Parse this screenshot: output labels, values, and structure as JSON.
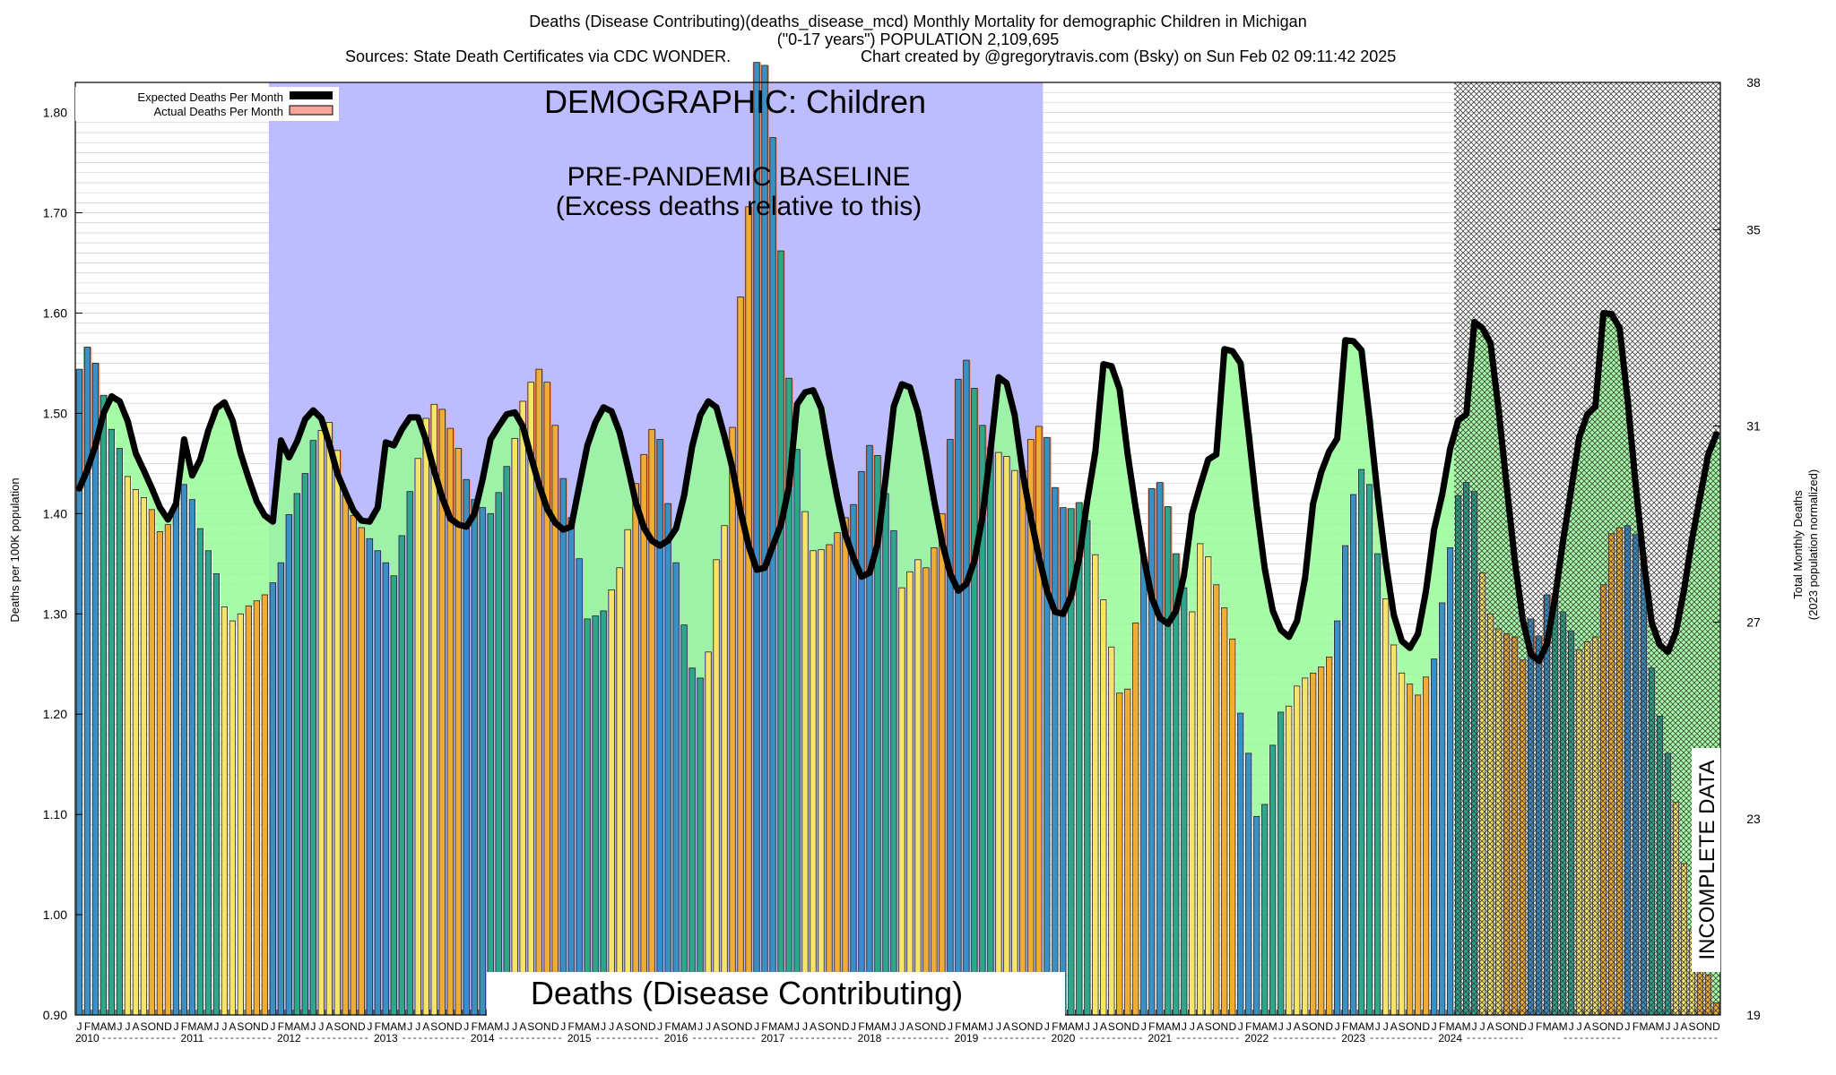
{
  "header": {
    "title_line1": "Deaths (Disease Contributing)(deaths_disease_mcd) Monthly Mortality for demographic Children in Michigan",
    "title_line2": "(\"0-17 years\") POPULATION 2,109,695",
    "sources": "Sources: State Death Certificates via CDC WONDER.",
    "credit": "Chart created by @gregorytravis.com (Bsky) on Sun Feb 02 09:11:42 2025"
  },
  "legend": {
    "expected": "Expected Deaths Per Month",
    "actual": "Actual Deaths Per Month"
  },
  "annotations": {
    "demographic": "DEMOGRAPHIC: Children",
    "baseline_line1": "PRE-PANDEMIC BASELINE",
    "baseline_line2": "(Excess deaths relative to this)",
    "incomplete": "INCOMPLETE DATA",
    "bottom_label": "Deaths (Disease Contributing)"
  },
  "colors": {
    "winter": "#3a8fc4",
    "spring": "#2fa58a",
    "summer": "#f4e46a",
    "autumn": "#f0ad35",
    "excess_fill": "#ff8c69",
    "deficit_fill": "#98fb98",
    "baseline_band": "#bcbcff",
    "expected_line": "#000000"
  },
  "chart_data": {
    "type": "bar",
    "title": "Deaths (Disease Contributing)(deaths_disease_mcd) Monthly Mortality for demographic Children in Michigan",
    "ylabel": "Deaths per 100K population",
    "ylabel_right_line1": "Total Monthly Deaths",
    "ylabel_right_line2": "(2023 population normalized)",
    "ylim": [
      0.9,
      1.83
    ],
    "yticks": [
      "0.90",
      "1.00",
      "1.10",
      "1.20",
      "1.30",
      "1.40",
      "1.50",
      "1.60",
      "1.70",
      "1.80"
    ],
    "yticks_right": [
      "19",
      "23",
      "27",
      "31",
      "35",
      "38"
    ],
    "month_letters": [
      "J",
      "F",
      "M",
      "A",
      "M",
      "J",
      "J",
      "A",
      "S",
      "O",
      "N",
      "D"
    ],
    "years": [
      "2010",
      "2011",
      "2012",
      "2013",
      "2014",
      "2015",
      "2016",
      "2017",
      "2018",
      "2019",
      "2020",
      "2021",
      "2022",
      "2023",
      "2024"
    ],
    "baseline_period": [
      "2012-01",
      "2019-12"
    ],
    "incomplete_from": "2024-04",
    "series": [
      {
        "name": "Actual Deaths Per Month",
        "values": [
          1.544,
          1.566,
          1.55,
          1.518,
          1.484,
          1.465,
          1.437,
          1.424,
          1.416,
          1.404,
          1.382,
          1.389,
          1.409,
          1.429,
          1.414,
          1.385,
          1.363,
          1.34,
          1.307,
          1.293,
          1.3,
          1.308,
          1.313,
          1.319,
          1.331,
          1.351,
          1.399,
          1.42,
          1.44,
          1.473,
          1.483,
          1.491,
          1.463,
          1.419,
          1.398,
          1.386,
          1.375,
          1.363,
          1.351,
          1.338,
          1.378,
          1.422,
          1.455,
          1.495,
          1.509,
          1.504,
          1.485,
          1.465,
          1.434,
          1.414,
          1.406,
          1.4,
          1.421,
          1.447,
          1.475,
          1.512,
          1.531,
          1.544,
          1.531,
          1.488,
          1.435,
          1.396,
          1.355,
          1.295,
          1.298,
          1.303,
          1.324,
          1.346,
          1.384,
          1.43,
          1.459,
          1.484,
          1.474,
          1.41,
          1.351,
          1.289,
          1.246,
          1.236,
          1.262,
          1.354,
          1.388,
          1.486,
          1.616,
          1.706,
          1.85,
          1.847,
          1.775,
          1.662,
          1.535,
          1.464,
          1.402,
          1.363,
          1.364,
          1.369,
          1.381,
          1.396,
          1.409,
          1.442,
          1.468,
          1.458,
          1.42,
          1.383,
          1.326,
          1.342,
          1.354,
          1.346,
          1.366,
          1.4,
          1.474,
          1.534,
          1.553,
          1.525,
          1.488,
          1.466,
          1.461,
          1.457,
          1.443,
          1.443,
          1.474,
          1.487,
          1.476,
          1.426,
          1.406,
          1.405,
          1.411,
          1.393,
          1.359,
          1.314,
          1.267,
          1.221,
          1.225,
          1.291,
          1.357,
          1.425,
          1.431,
          1.407,
          1.36,
          1.326,
          1.302,
          1.37,
          1.357,
          1.329,
          1.306,
          1.275,
          1.201,
          1.161,
          1.098,
          1.11,
          1.169,
          1.202,
          1.208,
          1.228,
          1.236,
          1.241,
          1.247,
          1.257,
          1.293,
          1.368,
          1.419,
          1.444,
          1.429,
          1.36,
          1.315,
          1.269,
          1.241,
          1.23,
          1.219,
          1.237,
          1.255,
          1.311,
          1.366,
          1.418,
          1.431,
          1.422,
          1.341,
          1.3,
          1.285,
          1.28,
          1.277,
          1.254,
          1.295,
          1.278,
          1.319,
          1.318,
          1.302,
          1.283,
          1.264,
          1.272,
          1.277,
          1.329,
          1.38,
          1.386,
          1.388,
          1.379,
          1.357,
          1.246,
          1.198,
          1.161,
          1.112,
          1.051,
          0.985,
          0.967,
          0.94,
          0.912
        ]
      },
      {
        "name": "Expected Deaths Per Month",
        "values": [
          1.425,
          1.444,
          1.468,
          1.5,
          1.517,
          1.512,
          1.492,
          1.46,
          1.443,
          1.425,
          1.406,
          1.394,
          1.41,
          1.474,
          1.438,
          1.454,
          1.483,
          1.505,
          1.511,
          1.493,
          1.46,
          1.435,
          1.412,
          1.398,
          1.392,
          1.473,
          1.456,
          1.472,
          1.494,
          1.503,
          1.495,
          1.47,
          1.44,
          1.421,
          1.403,
          1.393,
          1.392,
          1.406,
          1.471,
          1.468,
          1.484,
          1.496,
          1.496,
          1.473,
          1.443,
          1.416,
          1.395,
          1.389,
          1.387,
          1.4,
          1.434,
          1.474,
          1.487,
          1.499,
          1.501,
          1.487,
          1.457,
          1.429,
          1.405,
          1.391,
          1.384,
          1.387,
          1.428,
          1.468,
          1.491,
          1.506,
          1.502,
          1.481,
          1.447,
          1.411,
          1.386,
          1.373,
          1.368,
          1.373,
          1.385,
          1.418,
          1.467,
          1.498,
          1.512,
          1.506,
          1.477,
          1.445,
          1.402,
          1.368,
          1.344,
          1.346,
          1.368,
          1.389,
          1.427,
          1.509,
          1.521,
          1.523,
          1.505,
          1.458,
          1.416,
          1.379,
          1.356,
          1.337,
          1.341,
          1.37,
          1.436,
          1.507,
          1.529,
          1.526,
          1.501,
          1.459,
          1.413,
          1.371,
          1.34,
          1.323,
          1.33,
          1.353,
          1.397,
          1.463,
          1.536,
          1.53,
          1.498,
          1.44,
          1.396,
          1.357,
          1.323,
          1.302,
          1.3,
          1.318,
          1.356,
          1.413,
          1.462,
          1.549,
          1.547,
          1.524,
          1.459,
          1.405,
          1.356,
          1.316,
          1.296,
          1.29,
          1.303,
          1.339,
          1.4,
          1.428,
          1.454,
          1.459,
          1.564,
          1.562,
          1.55,
          1.48,
          1.407,
          1.345,
          1.303,
          1.284,
          1.277,
          1.293,
          1.336,
          1.41,
          1.441,
          1.462,
          1.475,
          1.573,
          1.572,
          1.563,
          1.494,
          1.418,
          1.352,
          1.299,
          1.273,
          1.266,
          1.28,
          1.323,
          1.384,
          1.419,
          1.465,
          1.493,
          1.499,
          1.591,
          1.585,
          1.57,
          1.504,
          1.428,
          1.354,
          1.294,
          1.26,
          1.253,
          1.27,
          1.316,
          1.373,
          1.424,
          1.476,
          1.499,
          1.507,
          1.6,
          1.599,
          1.585,
          1.513,
          1.428,
          1.353,
          1.291,
          1.269,
          1.262,
          1.282,
          1.324,
          1.375,
          1.417,
          1.459,
          1.479
        ]
      }
    ]
  }
}
